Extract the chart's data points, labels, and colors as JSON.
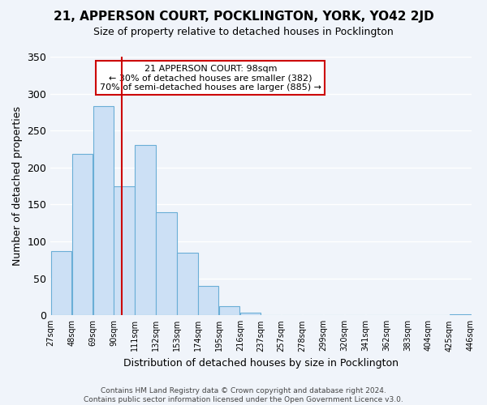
{
  "title": "21, APPERSON COURT, POCKLINGTON, YORK, YO42 2JD",
  "subtitle": "Size of property relative to detached houses in Pocklington",
  "xlabel": "Distribution of detached houses by size in Pocklington",
  "ylabel": "Number of detached properties",
  "bin_labels": [
    "27sqm",
    "48sqm",
    "69sqm",
    "90sqm",
    "111sqm",
    "132sqm",
    "153sqm",
    "174sqm",
    "195sqm",
    "216sqm",
    "237sqm",
    "257sqm",
    "278sqm",
    "299sqm",
    "320sqm",
    "341sqm",
    "362sqm",
    "383sqm",
    "404sqm",
    "425sqm",
    "446sqm"
  ],
  "bar_values": [
    87,
    219,
    283,
    175,
    230,
    139,
    85,
    40,
    12,
    4,
    0,
    0,
    0,
    0,
    0,
    0,
    0,
    0,
    0,
    1
  ],
  "bar_color": "#cce0f5",
  "bar_edge_color": "#6aaed6",
  "vline_x": 98,
  "bin_edges": [
    27,
    48,
    69,
    90,
    111,
    132,
    153,
    174,
    195,
    216,
    237,
    257,
    278,
    299,
    320,
    341,
    362,
    383,
    404,
    425,
    446
  ],
  "ylim": [
    0,
    350
  ],
  "yticks": [
    0,
    50,
    100,
    150,
    200,
    250,
    300,
    350
  ],
  "annotation_title": "21 APPERSON COURT: 98sqm",
  "annotation_line1": "← 30% of detached houses are smaller (382)",
  "annotation_line2": "70% of semi-detached houses are larger (885) →",
  "vline_color": "#cc0000",
  "annotation_box_edge": "#cc0000",
  "footer_line1": "Contains HM Land Registry data © Crown copyright and database right 2024.",
  "footer_line2": "Contains public sector information licensed under the Open Government Licence v3.0.",
  "background_color": "#f0f4fa",
  "grid_color": "#ffffff"
}
